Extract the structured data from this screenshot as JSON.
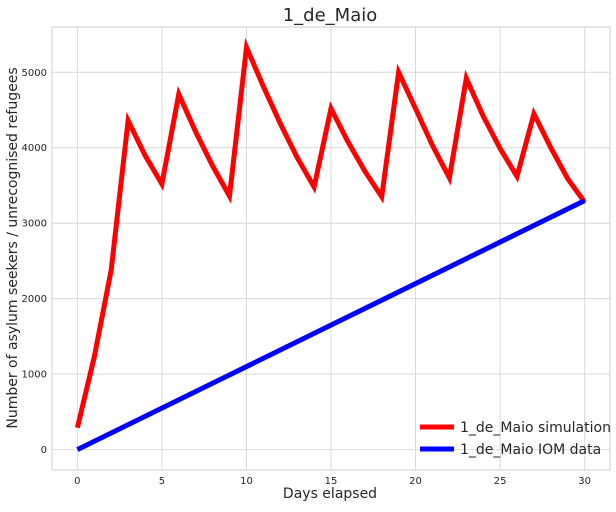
{
  "chart_data": {
    "type": "line",
    "title": "1_de_Maio",
    "xlabel": "Days elapsed",
    "ylabel": "Number of asylum seekers / unrecognised refugees",
    "xlim": [
      -1.5,
      31.5
    ],
    "ylim": [
      -270,
      5600
    ],
    "xticks": [
      0,
      5,
      10,
      15,
      20,
      25,
      30
    ],
    "yticks": [
      0,
      1000,
      2000,
      3000,
      4000,
      5000
    ],
    "grid": true,
    "legend_position": "lower-right",
    "series": [
      {
        "name": "1_de_Maio simulation",
        "color": "#ff0000",
        "x": [
          0,
          1,
          2,
          3,
          4,
          5,
          6,
          7,
          8,
          9,
          10,
          11,
          12,
          13,
          14,
          15,
          16,
          17,
          18,
          19,
          20,
          21,
          22,
          23,
          24,
          25,
          26,
          27,
          28,
          29,
          30
        ],
        "y": [
          290,
          1230,
          2380,
          4360,
          3900,
          3520,
          4710,
          4210,
          3760,
          3360,
          5330,
          4810,
          4320,
          3870,
          3480,
          4520,
          4080,
          3690,
          3350,
          5000,
          4520,
          4030,
          3600,
          4920,
          4420,
          3990,
          3620,
          4450,
          4000,
          3590,
          3280
        ]
      },
      {
        "name": "1_de_Maio IOM data",
        "color": "#0000ff",
        "x": [
          0,
          30
        ],
        "y": [
          0,
          3300
        ]
      }
    ]
  }
}
